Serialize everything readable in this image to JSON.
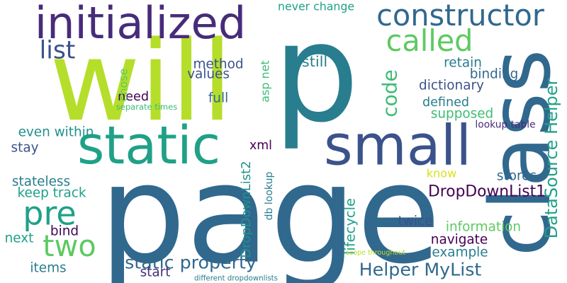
{
  "colors": {
    "background": "#ffffff",
    "dark_purple": "#440154",
    "indigo": "#472c7a",
    "blue_slate": "#3b528b",
    "blue_teal": "#31688e",
    "teal": "#287d8e",
    "teal_green": "#21918c",
    "green_teal": "#1fa187",
    "green": "#3dbc74",
    "light_green": "#5ec962",
    "lime": "#b5de2b",
    "yellow": "#d8e219"
  },
  "words": [
    {
      "text": "page",
      "color": "#31688e",
      "orientation": "horizontal"
    },
    {
      "text": "p",
      "color": "#287d8e",
      "orientation": "horizontal"
    },
    {
      "text": "will",
      "color": "#b5de2b",
      "orientation": "horizontal"
    },
    {
      "text": "class",
      "color": "#31688e",
      "orientation": "vertical"
    },
    {
      "text": "static",
      "color": "#1fa187",
      "orientation": "horizontal"
    },
    {
      "text": "small",
      "color": "#3b528b",
      "orientation": "horizontal"
    },
    {
      "text": "initialized",
      "color": "#472c7a",
      "orientation": "horizontal"
    },
    {
      "text": "constructor",
      "color": "#31688e",
      "orientation": "horizontal"
    },
    {
      "text": "called",
      "color": "#5ec962",
      "orientation": "horizontal"
    },
    {
      "text": "code",
      "color": "#3dbc74",
      "orientation": "vertical"
    },
    {
      "text": "pre",
      "color": "#1fa187",
      "orientation": "horizontal"
    },
    {
      "text": "two",
      "color": "#5ec962",
      "orientation": "horizontal"
    },
    {
      "text": "list",
      "color": "#3b528b",
      "orientation": "horizontal"
    },
    {
      "text": "DataSource Helper",
      "color": "#1fa187",
      "orientation": "vertical"
    },
    {
      "text": "static property",
      "color": "#31688e",
      "orientation": "horizontal"
    },
    {
      "text": "Helper MyList",
      "color": "#31688e",
      "orientation": "horizontal"
    },
    {
      "text": "DropDownList1",
      "color": "#440154",
      "orientation": "horizontal"
    },
    {
      "text": "DropDownList2",
      "color": "#21918c",
      "orientation": "vertical"
    },
    {
      "text": "method",
      "color": "#3b528b",
      "orientation": "horizontal"
    },
    {
      "text": "values",
      "color": "#3b528b",
      "orientation": "horizontal"
    },
    {
      "text": "full",
      "color": "#31688e",
      "orientation": "horizontal"
    },
    {
      "text": "need",
      "color": "#440154",
      "orientation": "horizontal"
    },
    {
      "text": "still",
      "color": "#287d8e",
      "orientation": "horizontal"
    },
    {
      "text": "retain",
      "color": "#287d8e",
      "orientation": "horizontal"
    },
    {
      "text": "binding",
      "color": "#31688e",
      "orientation": "horizontal"
    },
    {
      "text": "dictionary",
      "color": "#3b528b",
      "orientation": "horizontal"
    },
    {
      "text": "defined",
      "color": "#287d8e",
      "orientation": "horizontal"
    },
    {
      "text": "supposed",
      "color": "#3dbc74",
      "orientation": "horizontal"
    },
    {
      "text": "lookup table",
      "color": "#472c7a",
      "orientation": "horizontal"
    },
    {
      "text": "chose",
      "color": "#5ec962",
      "orientation": "vertical"
    },
    {
      "text": "asp net",
      "color": "#3dbc74",
      "orientation": "vertical"
    },
    {
      "text": "xml",
      "color": "#440154",
      "orientation": "horizontal"
    },
    {
      "text": "db lookup",
      "color": "#287d8e",
      "orientation": "vertical"
    },
    {
      "text": "lifecycle",
      "color": "#1fa187",
      "orientation": "vertical"
    },
    {
      "text": "never change",
      "color": "#1fa187",
      "orientation": "horizontal"
    },
    {
      "text": "even within",
      "color": "#21918c",
      "orientation": "horizontal"
    },
    {
      "text": "stay",
      "color": "#3b528b",
      "orientation": "horizontal"
    },
    {
      "text": "stateless",
      "color": "#287d8e",
      "orientation": "horizontal"
    },
    {
      "text": "keep track",
      "color": "#1fa187",
      "orientation": "horizontal"
    },
    {
      "text": "next",
      "color": "#1fa187",
      "orientation": "horizontal"
    },
    {
      "text": "bind",
      "color": "#440154",
      "orientation": "horizontal"
    },
    {
      "text": "items",
      "color": "#287d8e",
      "orientation": "horizontal"
    },
    {
      "text": "start",
      "color": "#472c7a",
      "orientation": "horizontal"
    },
    {
      "text": "know",
      "color": "#d8e219",
      "orientation": "horizontal"
    },
    {
      "text": "stores",
      "color": "#31688e",
      "orientation": "horizontal"
    },
    {
      "text": "twice",
      "color": "#3b528b",
      "orientation": "horizontal"
    },
    {
      "text": "information",
      "color": "#5ec962",
      "orientation": "horizontal"
    },
    {
      "text": "navigate",
      "color": "#440154",
      "orientation": "horizontal"
    },
    {
      "text": "example",
      "color": "#287d8e",
      "orientation": "horizontal"
    },
    {
      "text": "separate times",
      "color": "#3dbc74",
      "orientation": "horizontal"
    },
    {
      "text": "scope throughout",
      "color": "#b5de2b",
      "orientation": "horizontal"
    },
    {
      "text": "different dropdownlists",
      "color": "#287d8e",
      "orientation": "horizontal"
    }
  ]
}
